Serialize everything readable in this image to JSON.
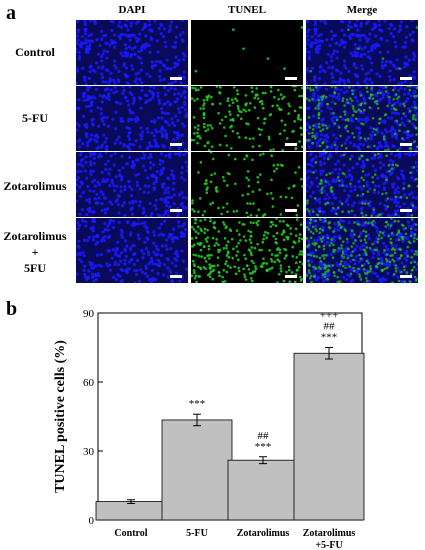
{
  "panel_a": {
    "letter": "a",
    "columns": [
      "DAPI",
      "TUNEL",
      "Merge"
    ],
    "rows": [
      {
        "lines": [
          "Control"
        ]
      },
      {
        "lines": [
          "5-FU"
        ]
      },
      {
        "lines": [
          "Zotarolimus"
        ]
      },
      {
        "lines": [
          "Zotarolimus",
          "+",
          "5FU"
        ]
      }
    ],
    "channel_colors": {
      "dapi": "#1a1aff",
      "tunel": "#22cc22",
      "background": "#000000"
    },
    "tunel_intensity": [
      0.02,
      0.55,
      0.3,
      0.85
    ]
  },
  "panel_b": {
    "letter": "b"
  },
  "chart_data": {
    "type": "bar",
    "ylabel": "TUNEL positive cells (%)",
    "xlabel": "",
    "categories": [
      [
        "Control"
      ],
      [
        "5-FU"
      ],
      [
        "Zotarolimus"
      ],
      [
        "Zotarolimus",
        "+5-FU"
      ]
    ],
    "values": [
      8,
      43.5,
      26,
      72.5
    ],
    "errors": [
      0.8,
      2.5,
      1.5,
      2.5
    ],
    "annotations": [
      [],
      [
        "***"
      ],
      [
        "##",
        "***"
      ],
      [
        "+++",
        "##",
        "***"
      ]
    ],
    "ylim": [
      0,
      90
    ],
    "yticks": [
      0,
      30,
      60,
      90
    ],
    "bar_color": "#c0c0c0",
    "grid": false
  }
}
